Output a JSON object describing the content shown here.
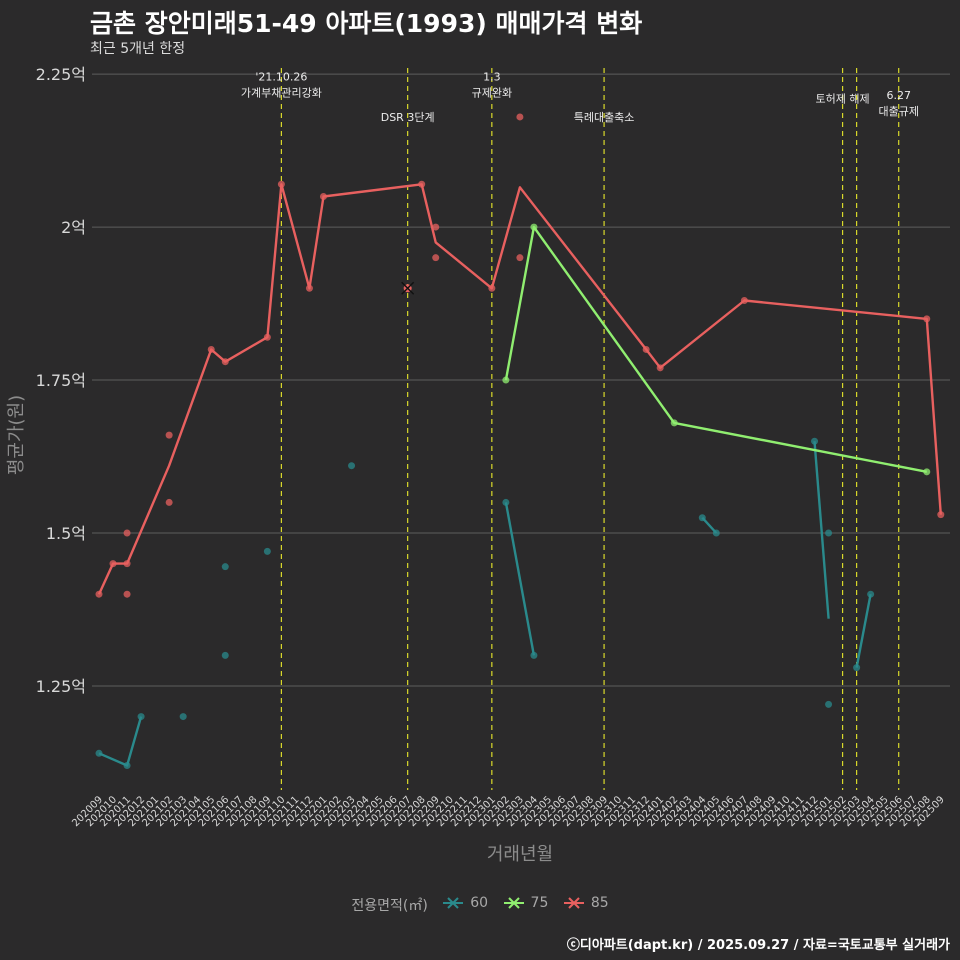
{
  "chart_data": {
    "type": "line",
    "title": "금촌 장안미래51-49 아파트(1993) 매매가격 변화",
    "subtitle": "최근 5개년 한정",
    "xlabel": "거래년월",
    "ylabel": "평균가(원)",
    "y_unit": "억",
    "ylim": [
      1.08,
      2.26
    ],
    "yticks": [
      {
        "value": 1.25,
        "label": "1.25억"
      },
      {
        "value": 1.5,
        "label": "1.5억"
      },
      {
        "value": 1.75,
        "label": "1.75억"
      },
      {
        "value": 2.0,
        "label": "2억"
      },
      {
        "value": 2.25,
        "label": "2.25억"
      }
    ],
    "categories": [
      "202009",
      "202010",
      "202011",
      "202012",
      "202101",
      "202102",
      "202103",
      "202104",
      "202105",
      "202106",
      "202107",
      "202108",
      "202109",
      "202110",
      "202111",
      "202112",
      "202201",
      "202202",
      "202203",
      "202204",
      "202205",
      "202206",
      "202207",
      "202208",
      "202209",
      "202210",
      "202211",
      "202212",
      "202301",
      "202302",
      "202303",
      "202304",
      "202305",
      "202306",
      "202307",
      "202308",
      "202309",
      "202310",
      "202311",
      "202312",
      "202401",
      "202402",
      "202403",
      "202404",
      "202405",
      "202406",
      "202407",
      "202408",
      "202409",
      "202410",
      "202411",
      "202412",
      "202501",
      "202502",
      "202503",
      "202504",
      "202505",
      "202506",
      "202507",
      "202508",
      "202509"
    ],
    "legend_title": "전용면적(㎡)",
    "series": [
      {
        "name": "60",
        "color": "#2a8a8c",
        "line_segments": [
          [
            [
              0,
              1.14
            ],
            [
              2,
              1.12
            ],
            [
              3,
              1.2
            ]
          ],
          [
            [
              29,
              1.55
            ],
            [
              31,
              1.3
            ]
          ],
          [
            [
              43,
              1.525
            ],
            [
              44,
              1.5
            ]
          ],
          [
            [
              51,
              1.65
            ],
            [
              52,
              1.36
            ]
          ],
          [
            [
              54,
              1.28
            ],
            [
              55,
              1.4
            ]
          ]
        ],
        "points": [
          [
            0,
            1.14
          ],
          [
            2,
            1.12
          ],
          [
            3,
            1.2
          ],
          [
            6,
            1.2
          ],
          [
            9,
            1.3
          ],
          [
            9,
            1.445
          ],
          [
            12,
            1.47
          ],
          [
            18,
            1.61
          ],
          [
            29,
            1.55
          ],
          [
            31,
            1.3
          ],
          [
            43,
            1.525
          ],
          [
            44,
            1.5
          ],
          [
            51,
            1.65
          ],
          [
            52,
            1.5
          ],
          [
            52,
            1.22
          ],
          [
            54,
            1.28
          ],
          [
            55,
            1.4
          ]
        ]
      },
      {
        "name": "75",
        "color": "#90ee70",
        "line_segments": [
          [
            [
              29,
              1.75
            ],
            [
              31,
              2.0
            ],
            [
              41,
              1.68
            ],
            [
              59,
              1.6
            ]
          ]
        ],
        "points": [
          [
            29,
            1.75
          ],
          [
            31,
            2.0
          ],
          [
            41,
            1.68
          ],
          [
            59,
            1.6
          ]
        ]
      },
      {
        "name": "85",
        "color": "#e8605f",
        "line_segments": [
          [
            [
              0,
              1.4
            ],
            [
              1,
              1.45
            ],
            [
              2,
              1.45
            ],
            [
              5,
              1.61
            ],
            [
              8,
              1.8
            ],
            [
              9,
              1.78
            ],
            [
              12,
              1.82
            ],
            [
              13,
              2.07
            ],
            [
              15,
              1.9
            ],
            [
              16,
              2.05
            ],
            [
              23,
              2.07
            ],
            [
              24,
              1.975
            ],
            [
              28,
              1.9
            ],
            [
              30,
              2.065
            ],
            [
              39,
              1.8
            ],
            [
              40,
              1.77
            ],
            [
              46,
              1.88
            ],
            [
              59,
              1.85
            ],
            [
              60,
              1.53
            ]
          ]
        ],
        "points": [
          [
            0,
            1.4
          ],
          [
            1,
            1.45
          ],
          [
            2,
            1.5
          ],
          [
            2,
            1.4
          ],
          [
            2,
            1.45
          ],
          [
            5,
            1.66
          ],
          [
            5,
            1.55
          ],
          [
            8,
            1.8
          ],
          [
            9,
            1.78
          ],
          [
            12,
            1.82
          ],
          [
            13,
            2.07
          ],
          [
            15,
            1.9
          ],
          [
            16,
            2.05
          ],
          [
            23,
            2.07
          ],
          [
            24,
            2.0
          ],
          [
            24,
            1.95
          ],
          [
            28,
            1.9
          ],
          [
            30,
            2.18
          ],
          [
            30,
            1.95
          ],
          [
            39,
            1.8
          ],
          [
            40,
            1.77
          ],
          [
            46,
            1.88
          ],
          [
            59,
            1.85
          ],
          [
            60,
            1.53
          ]
        ],
        "highlight": [
          22,
          1.9
        ]
      }
    ],
    "events": [
      {
        "x": 13,
        "lines": [
          "'21.10.26",
          "가계부채관리강화"
        ],
        "label_y": 2.22
      },
      {
        "x": 22,
        "lines": [
          "DSR 3단계"
        ],
        "label_y": 2.18
      },
      {
        "x": 28,
        "lines": [
          "1.3",
          "규제완화"
        ],
        "label_y": 2.22
      },
      {
        "x": 36,
        "lines": [
          "특례대출축소"
        ],
        "label_y": 2.18
      },
      {
        "x": 53,
        "lines": [
          "토허제 해제"
        ],
        "label_y": 2.21
      },
      {
        "x": 54,
        "lines": [],
        "label_y": 2.21
      },
      {
        "x": 57,
        "lines": [
          "6.27",
          "대출규제"
        ],
        "label_y": 2.19
      }
    ],
    "caption": "ⓒ디아파트(dapt.kr) / 2025.09.27 / 자료=국토교통부 실거래가"
  }
}
